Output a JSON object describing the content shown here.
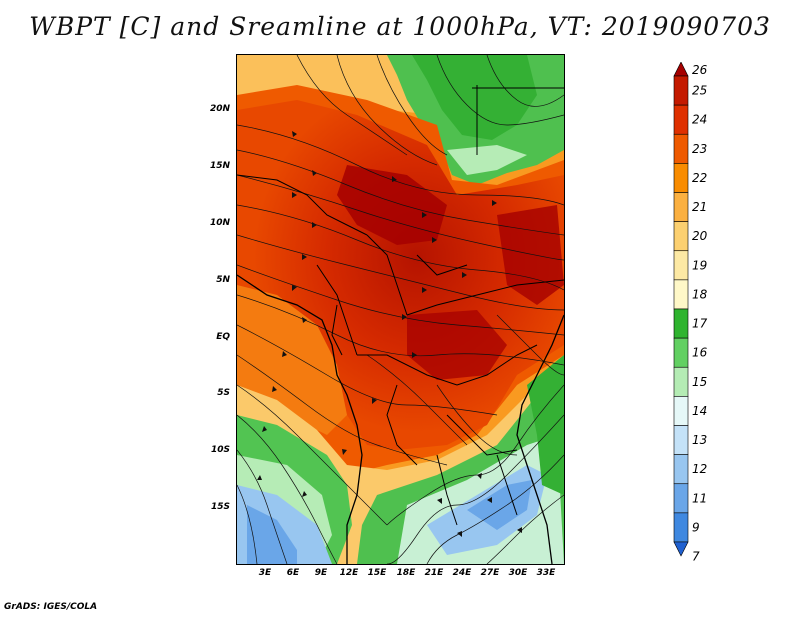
{
  "title": "WBPT [C] and Sreamline at 1000hPa, VT: 2019090703",
  "credit": "GrADS: IGES/COLA",
  "lat_labels": [
    "20N",
    "15N",
    "10N",
    "5N",
    "EQ",
    "5S",
    "10S",
    "15S"
  ],
  "lon_labels": [
    "3E",
    "6E",
    "9E",
    "12E",
    "15E",
    "18E",
    "21E",
    "24E",
    "27E",
    "30E",
    "33E"
  ],
  "colorbar": {
    "levels": [
      "26",
      "25",
      "24",
      "23",
      "22",
      "21",
      "20",
      "19",
      "18",
      "17",
      "16",
      "15",
      "14",
      "13",
      "12",
      "11",
      "9",
      "7"
    ],
    "colors": [
      "#a50000",
      "#c41a00",
      "#df3000",
      "#ef5a00",
      "#f98c00",
      "#fbb040",
      "#fcd070",
      "#fde9a4",
      "#fff8c8",
      "#2fb42f",
      "#62d062",
      "#b4ecb4",
      "#e6f8f8",
      "#c4e2f8",
      "#98c6f0",
      "#6aa6e8",
      "#3f88e0",
      "#1f60d0"
    ]
  }
}
